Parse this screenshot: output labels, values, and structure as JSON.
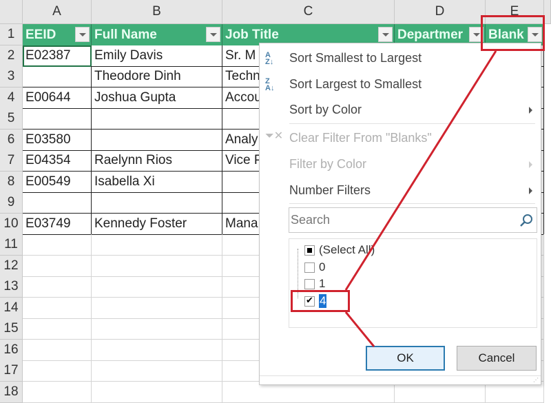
{
  "columns": [
    "A",
    "B",
    "C",
    "D",
    "E"
  ],
  "rows": [
    "1",
    "2",
    "3",
    "4",
    "5",
    "6",
    "7",
    "8",
    "9",
    "10",
    "11",
    "12",
    "13",
    "14",
    "15",
    "16",
    "17",
    "18"
  ],
  "headers": [
    "EEID",
    "Full Name",
    "Job Title",
    "Departmer",
    "Blank"
  ],
  "data": [
    [
      "E02387",
      "Emily Davis",
      "Sr. M"
    ],
    [
      "",
      "Theodore Dinh",
      "Techn"
    ],
    [
      "E00644",
      "Joshua Gupta",
      "Accou"
    ],
    [
      "",
      "",
      ""
    ],
    [
      "E03580",
      "",
      "Analy"
    ],
    [
      "E04354",
      "Raelynn Rios",
      "Vice P"
    ],
    [
      "E00549",
      "Isabella Xi",
      ""
    ],
    [
      "",
      "",
      ""
    ],
    [
      "E03749",
      "Kennedy Foster",
      "Mana"
    ]
  ],
  "filter_menu": {
    "sort_asc": "Sort Smallest to Largest",
    "sort_desc": "Sort Largest to Smallest",
    "sort_color": "Sort by Color",
    "clear_filter": "Clear Filter From \"Blanks\"",
    "filter_color": "Filter by Color",
    "number_filters": "Number Filters",
    "search_placeholder": "Search",
    "list": [
      {
        "label": "(Select All)",
        "state": "partial"
      },
      {
        "label": "0",
        "state": "unchecked"
      },
      {
        "label": "1",
        "state": "unchecked"
      },
      {
        "label": "4",
        "state": "checked"
      }
    ],
    "ok": "OK",
    "cancel": "Cancel"
  },
  "colors": {
    "header_green": "#3fae78",
    "highlight_red": "#d0232e",
    "selection_blue": "#1a73d2"
  }
}
